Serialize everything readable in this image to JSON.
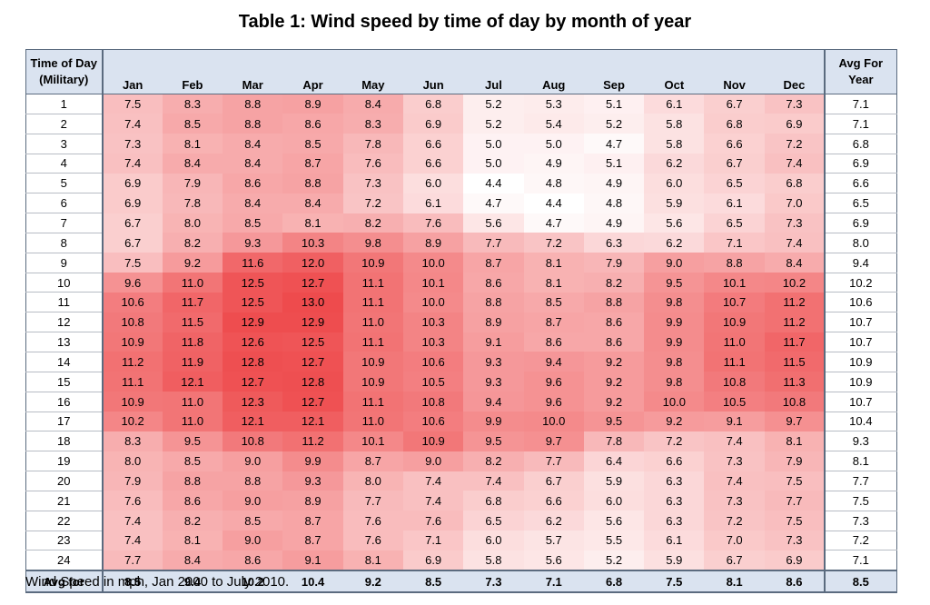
{
  "chart_data": {
    "type": "heatmap",
    "title": "Table 1: Wind speed by time of day by month of year",
    "row_header": "Time of Day (Military)",
    "avg_col_header": "Avg For Year",
    "footer_label": "Avg for",
    "note": "Wind Speed in mph, Jan 2000 to July 2010.",
    "months": [
      "Jan",
      "Feb",
      "Mar",
      "Apr",
      "May",
      "Jun",
      "Jul",
      "Aug",
      "Sep",
      "Oct",
      "Nov",
      "Dec"
    ],
    "rows": [
      {
        "hour": "1",
        "values": [
          "7.5",
          "8.3",
          "8.8",
          "8.9",
          "8.4",
          "6.8",
          "5.2",
          "5.3",
          "5.1",
          "6.1",
          "6.7",
          "7.3"
        ],
        "avg": "7.1"
      },
      {
        "hour": "2",
        "values": [
          "7.4",
          "8.5",
          "8.8",
          "8.6",
          "8.3",
          "6.9",
          "5.2",
          "5.4",
          "5.2",
          "5.8",
          "6.8",
          "6.9"
        ],
        "avg": "7.1"
      },
      {
        "hour": "3",
        "values": [
          "7.3",
          "8.1",
          "8.4",
          "8.5",
          "7.8",
          "6.6",
          "5.0",
          "5.0",
          "4.7",
          "5.8",
          "6.6",
          "7.2"
        ],
        "avg": "6.8"
      },
      {
        "hour": "4",
        "values": [
          "7.4",
          "8.4",
          "8.4",
          "8.7",
          "7.6",
          "6.6",
          "5.0",
          "4.9",
          "5.1",
          "6.2",
          "6.7",
          "7.4"
        ],
        "avg": "6.9"
      },
      {
        "hour": "5",
        "values": [
          "6.9",
          "7.9",
          "8.6",
          "8.8",
          "7.3",
          "6.0",
          "4.4",
          "4.8",
          "4.9",
          "6.0",
          "6.5",
          "6.8"
        ],
        "avg": "6.6"
      },
      {
        "hour": "6",
        "values": [
          "6.9",
          "7.8",
          "8.4",
          "8.4",
          "7.2",
          "6.1",
          "4.7",
          "4.4",
          "4.8",
          "5.9",
          "6.1",
          "7.0"
        ],
        "avg": "6.5"
      },
      {
        "hour": "7",
        "values": [
          "6.7",
          "8.0",
          "8.5",
          "8.1",
          "8.2",
          "7.6",
          "5.6",
          "4.7",
          "4.9",
          "5.6",
          "6.5",
          "7.3"
        ],
        "avg": "6.9"
      },
      {
        "hour": "8",
        "values": [
          "6.7",
          "8.2",
          "9.3",
          "10.3",
          "9.8",
          "8.9",
          "7.7",
          "7.2",
          "6.3",
          "6.2",
          "7.1",
          "7.4"
        ],
        "avg": "8.0"
      },
      {
        "hour": "9",
        "values": [
          "7.5",
          "9.2",
          "11.6",
          "12.0",
          "10.9",
          "10.0",
          "8.7",
          "8.1",
          "7.9",
          "9.0",
          "8.8",
          "8.4"
        ],
        "avg": "9.4"
      },
      {
        "hour": "10",
        "values": [
          "9.6",
          "11.0",
          "12.5",
          "12.7",
          "11.1",
          "10.1",
          "8.6",
          "8.1",
          "8.2",
          "9.5",
          "10.1",
          "10.2"
        ],
        "avg": "10.2"
      },
      {
        "hour": "11",
        "values": [
          "10.6",
          "11.7",
          "12.5",
          "13.0",
          "11.1",
          "10.0",
          "8.8",
          "8.5",
          "8.8",
          "9.8",
          "10.7",
          "11.2"
        ],
        "avg": "10.6"
      },
      {
        "hour": "12",
        "values": [
          "10.8",
          "11.5",
          "12.9",
          "12.9",
          "11.0",
          "10.3",
          "8.9",
          "8.7",
          "8.6",
          "9.9",
          "10.9",
          "11.2"
        ],
        "avg": "10.7"
      },
      {
        "hour": "13",
        "values": [
          "10.9",
          "11.8",
          "12.6",
          "12.5",
          "11.1",
          "10.3",
          "9.1",
          "8.6",
          "8.6",
          "9.9",
          "11.0",
          "11.7"
        ],
        "avg": "10.7"
      },
      {
        "hour": "14",
        "values": [
          "11.2",
          "11.9",
          "12.8",
          "12.7",
          "10.9",
          "10.6",
          "9.3",
          "9.4",
          "9.2",
          "9.8",
          "11.1",
          "11.5"
        ],
        "avg": "10.9"
      },
      {
        "hour": "15",
        "values": [
          "11.1",
          "12.1",
          "12.7",
          "12.8",
          "10.9",
          "10.5",
          "9.3",
          "9.6",
          "9.2",
          "9.8",
          "10.8",
          "11.3"
        ],
        "avg": "10.9"
      },
      {
        "hour": "16",
        "values": [
          "10.9",
          "11.0",
          "12.3",
          "12.7",
          "11.1",
          "10.8",
          "9.4",
          "9.6",
          "9.2",
          "10.0",
          "10.5",
          "10.8"
        ],
        "avg": "10.7"
      },
      {
        "hour": "17",
        "values": [
          "10.2",
          "11.0",
          "12.1",
          "12.1",
          "11.0",
          "10.6",
          "9.9",
          "10.0",
          "9.5",
          "9.2",
          "9.1",
          "9.7"
        ],
        "avg": "10.4"
      },
      {
        "hour": "18",
        "values": [
          "8.3",
          "9.5",
          "10.8",
          "11.2",
          "10.1",
          "10.9",
          "9.5",
          "9.7",
          "7.8",
          "7.2",
          "7.4",
          "8.1"
        ],
        "avg": "9.3"
      },
      {
        "hour": "19",
        "values": [
          "8.0",
          "8.5",
          "9.0",
          "9.9",
          "8.7",
          "9.0",
          "8.2",
          "7.7",
          "6.4",
          "6.6",
          "7.3",
          "7.9"
        ],
        "avg": "8.1"
      },
      {
        "hour": "20",
        "values": [
          "7.9",
          "8.8",
          "8.8",
          "9.3",
          "8.0",
          "7.4",
          "7.4",
          "6.7",
          "5.9",
          "6.3",
          "7.4",
          "7.5"
        ],
        "avg": "7.7"
      },
      {
        "hour": "21",
        "values": [
          "7.6",
          "8.6",
          "9.0",
          "8.9",
          "7.7",
          "7.4",
          "6.8",
          "6.6",
          "6.0",
          "6.3",
          "7.3",
          "7.7"
        ],
        "avg": "7.5"
      },
      {
        "hour": "22",
        "values": [
          "7.4",
          "8.2",
          "8.5",
          "8.7",
          "7.6",
          "7.6",
          "6.5",
          "6.2",
          "5.6",
          "6.3",
          "7.2",
          "7.5"
        ],
        "avg": "7.3"
      },
      {
        "hour": "23",
        "values": [
          "7.4",
          "8.1",
          "9.0",
          "8.7",
          "7.6",
          "7.1",
          "6.0",
          "5.7",
          "5.5",
          "6.1",
          "7.0",
          "7.3"
        ],
        "avg": "7.2"
      },
      {
        "hour": "24",
        "values": [
          "7.7",
          "8.4",
          "8.6",
          "9.1",
          "8.1",
          "6.9",
          "5.8",
          "5.6",
          "5.2",
          "5.9",
          "6.7",
          "6.9"
        ],
        "avg": "7.1"
      }
    ],
    "month_avgs": [
      "8.5",
      "9.4",
      "10.2",
      "10.4",
      "9.2",
      "8.5",
      "7.3",
      "7.1",
      "6.8",
      "7.5",
      "8.1",
      "8.6"
    ],
    "overall_avg": "8.5",
    "color_scale": {
      "min": 4.4,
      "max": 13.0,
      "low_color": "#ffffff",
      "high_color": "#ee4b4d"
    }
  }
}
